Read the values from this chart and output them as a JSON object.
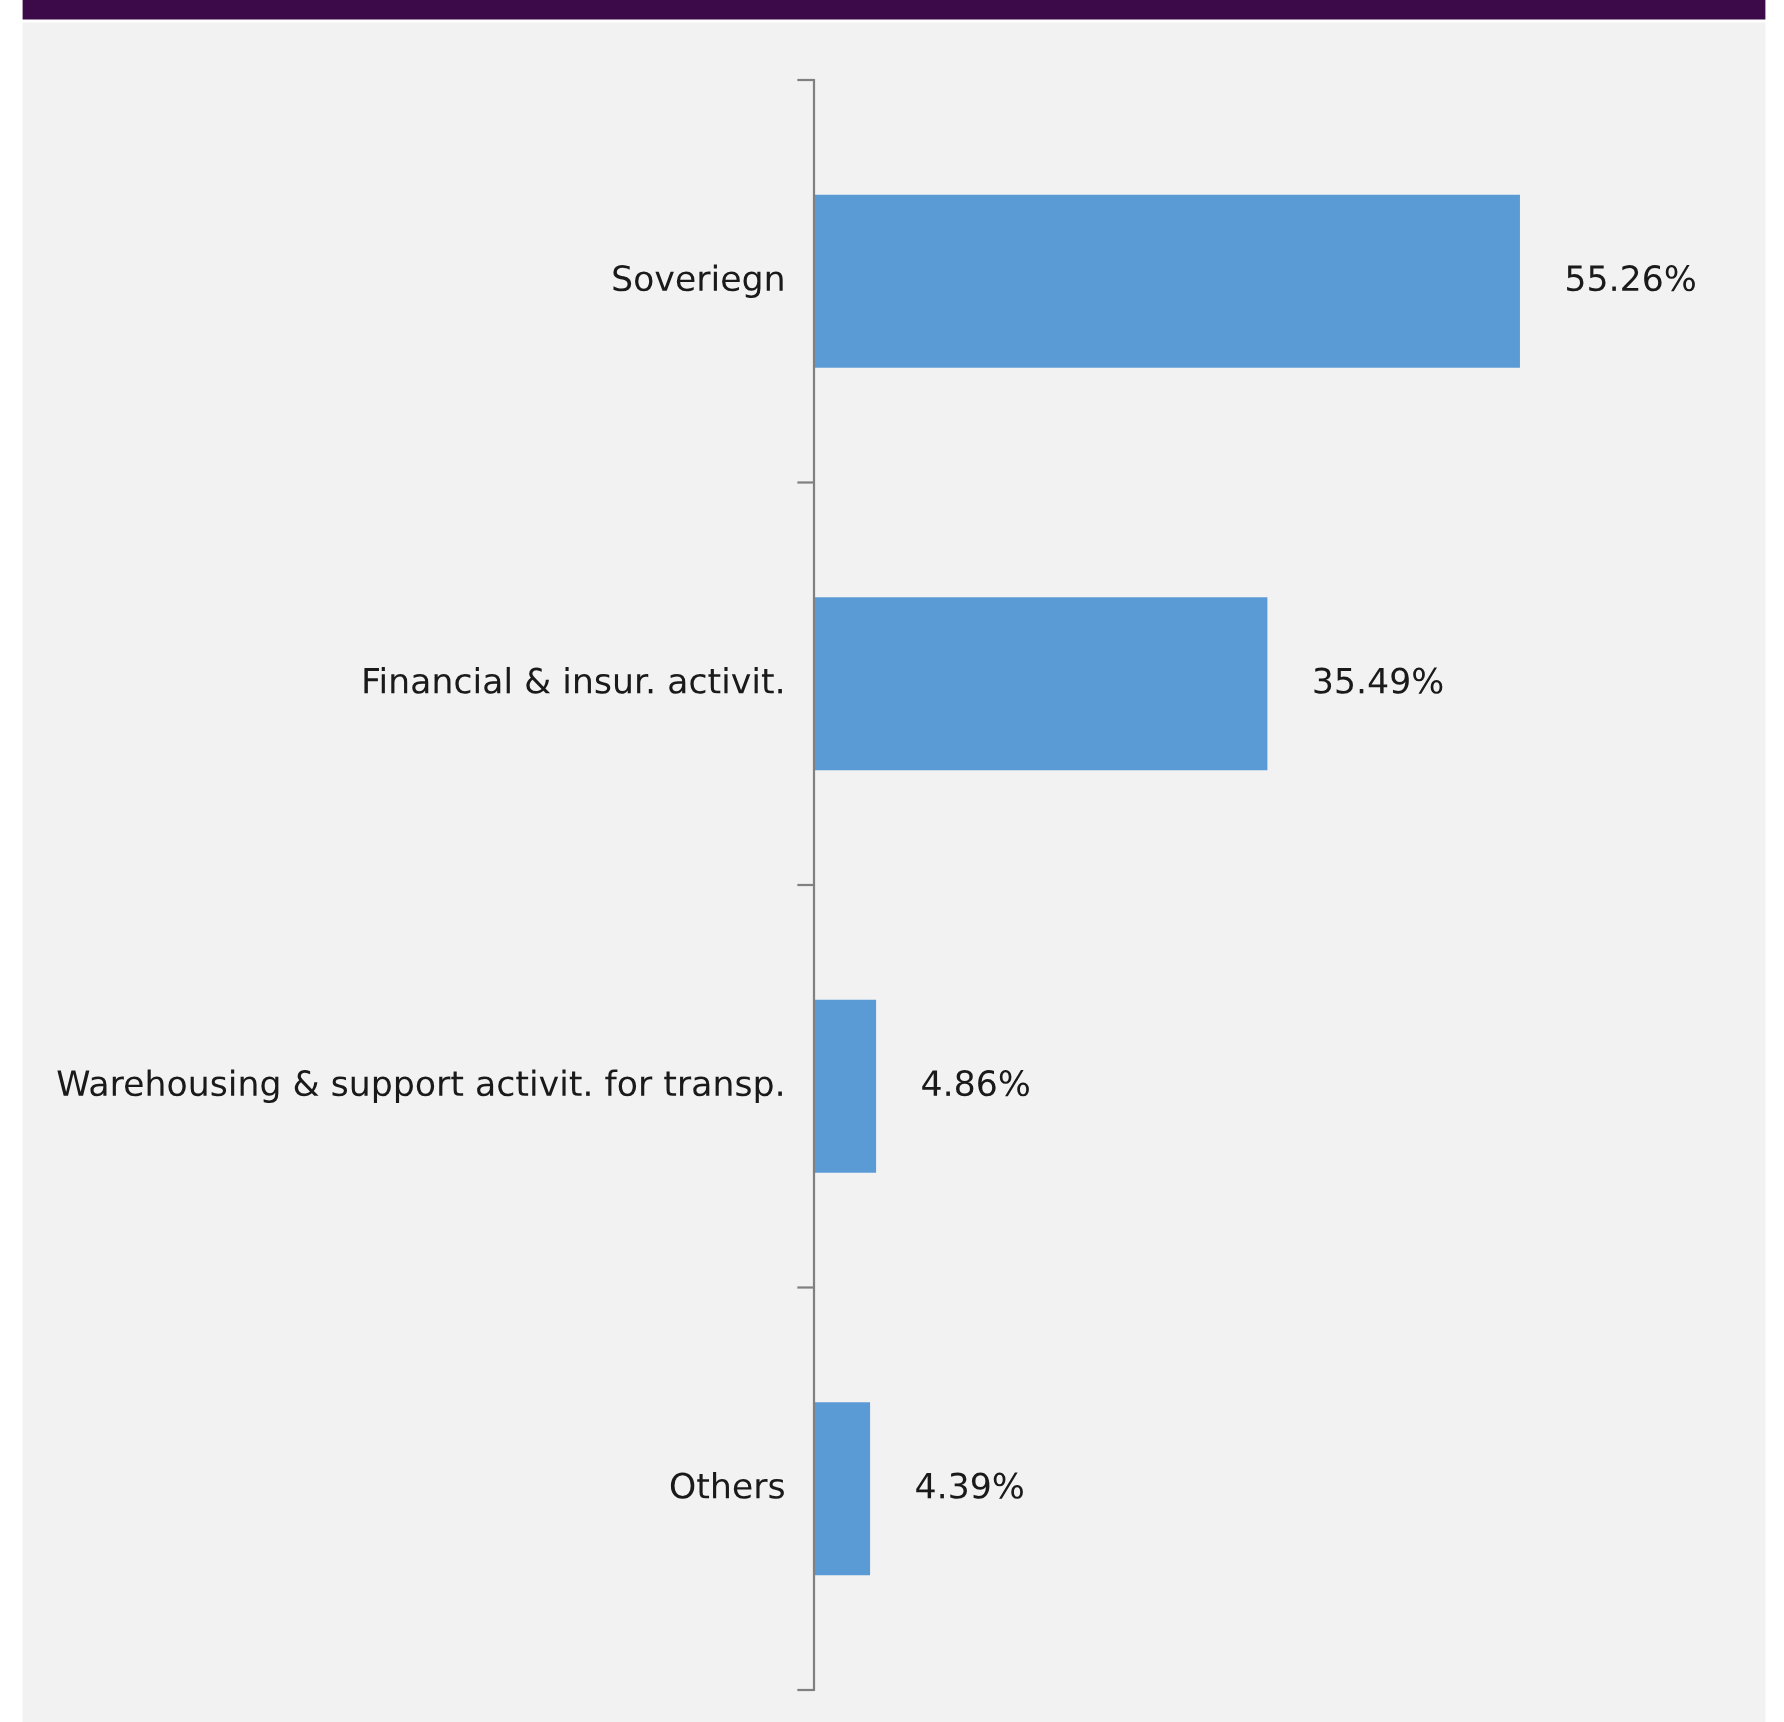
{
  "chart_data": {
    "type": "bar",
    "orientation": "horizontal",
    "categories": [
      "Soveriegn",
      "Financial & insur. activit.",
      "Warehousing & support activit. for transp.",
      "Others"
    ],
    "values": [
      55.26,
      35.49,
      4.86,
      4.39
    ],
    "value_labels": [
      "55.26%",
      "35.49%",
      "4.86%",
      "4.39%"
    ],
    "color": "#5b9bd5",
    "grid": false,
    "legend": false
  }
}
